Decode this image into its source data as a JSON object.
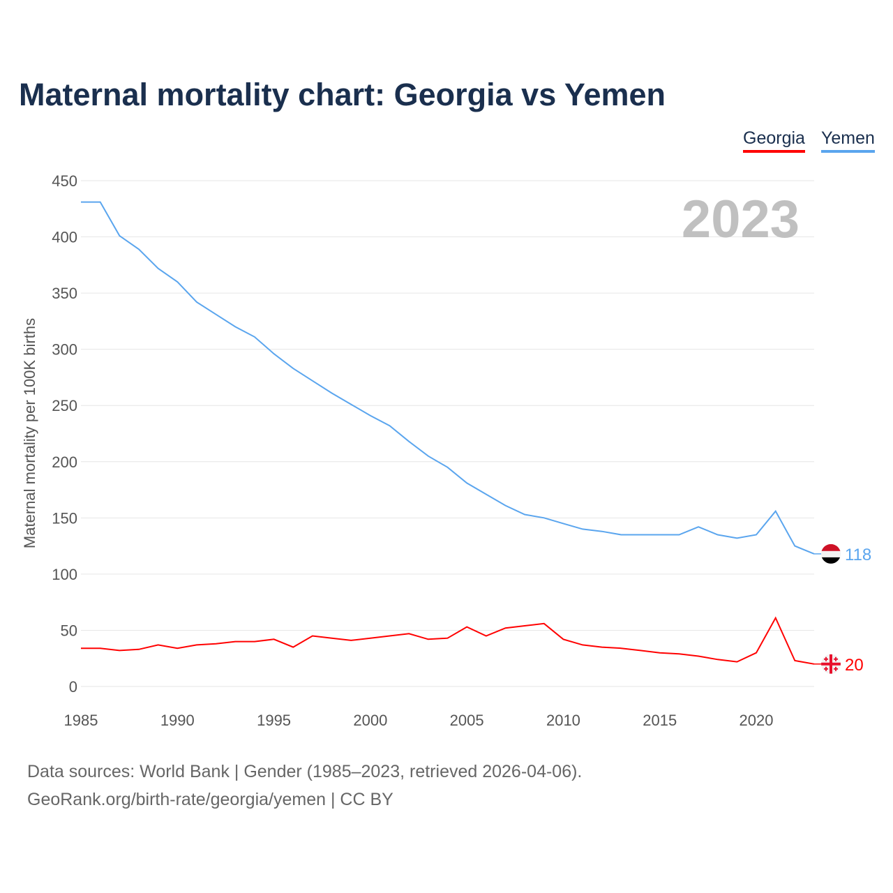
{
  "title": "Maternal mortality chart: Georgia vs Yemen",
  "footer": {
    "line1": "Data sources: World Bank | Gender (1985–2023, retrieved 2026-04-06).",
    "line2": "GeoRank.org/birth-rate/georgia/yemen | CC BY"
  },
  "chart_data": {
    "type": "line",
    "title": "Maternal mortality chart: Georgia vs Yemen",
    "ylabel": "Maternal mortality per 100K births",
    "xlabel": "",
    "year_label": "2023",
    "ylim": [
      0,
      450
    ],
    "xlim": [
      1985,
      2023
    ],
    "yticks": [
      0,
      50,
      100,
      150,
      200,
      250,
      300,
      350,
      400,
      450
    ],
    "xticks": [
      1985,
      1990,
      1995,
      2000,
      2005,
      2010,
      2015,
      2020
    ],
    "grid": true,
    "legend_position": "top-right",
    "x": [
      1985,
      1986,
      1987,
      1988,
      1989,
      1990,
      1991,
      1992,
      1993,
      1994,
      1995,
      1996,
      1997,
      1998,
      1999,
      2000,
      2001,
      2002,
      2003,
      2004,
      2005,
      2006,
      2007,
      2008,
      2009,
      2010,
      2011,
      2012,
      2013,
      2014,
      2015,
      2016,
      2017,
      2018,
      2019,
      2020,
      2021,
      2022,
      2023
    ],
    "series": [
      {
        "name": "Georgia",
        "color": "#ff0000",
        "end_label": "20",
        "values": [
          34,
          34,
          32,
          33,
          37,
          34,
          37,
          38,
          40,
          40,
          42,
          35,
          45,
          43,
          41,
          43,
          45,
          47,
          42,
          43,
          53,
          45,
          52,
          54,
          56,
          42,
          37,
          35,
          34,
          32,
          30,
          29,
          27,
          24,
          22,
          30,
          61,
          23,
          20
        ]
      },
      {
        "name": "Yemen",
        "color": "#5aa5ee",
        "end_label": "118",
        "values": [
          431,
          431,
          401,
          389,
          372,
          360,
          342,
          331,
          320,
          311,
          296,
          283,
          272,
          261,
          251,
          241,
          232,
          218,
          205,
          195,
          181,
          171,
          161,
          153,
          150,
          145,
          140,
          138,
          135,
          135,
          135,
          135,
          142,
          135,
          132,
          135,
          156,
          125,
          118
        ]
      }
    ]
  }
}
